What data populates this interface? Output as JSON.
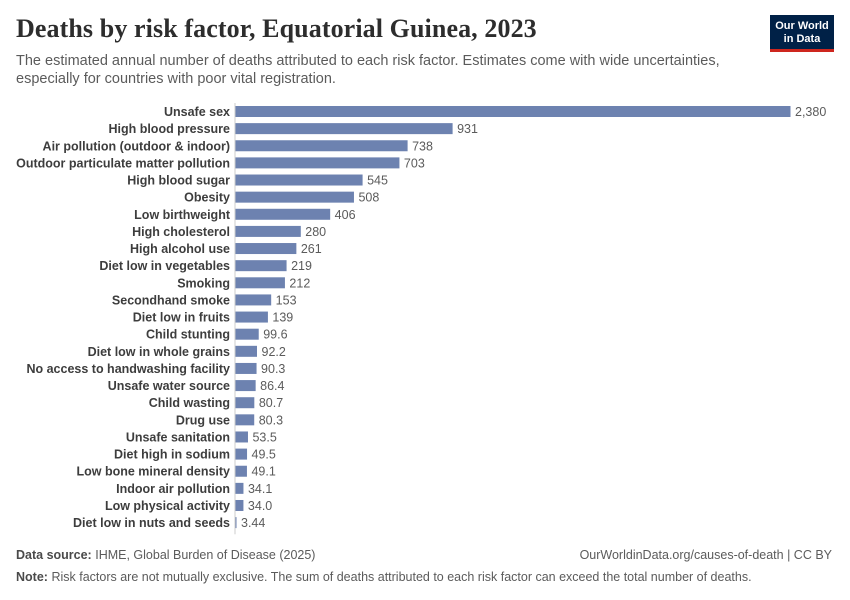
{
  "header": {
    "title": "Deaths by risk factor, Equatorial Guinea, 2023",
    "subtitle": "The estimated annual number of deaths attributed to each risk factor. Estimates come with wide uncertainties, especially for countries with poor vital registration.",
    "logo_line1": "Our World",
    "logo_line2": "in Data"
  },
  "colors": {
    "bar": "#6d82b0",
    "label": "#3d3d3d",
    "value": "#5b5b5b",
    "logo_bg": "#002147",
    "logo_accent": "#ce261e"
  },
  "chart_data": {
    "type": "bar",
    "orientation": "horizontal",
    "title": "Deaths by risk factor, Equatorial Guinea, 2023",
    "categories": [
      "Unsafe sex",
      "High blood pressure",
      "Air pollution (outdoor & indoor)",
      "Outdoor particulate matter pollution",
      "High blood sugar",
      "Obesity",
      "Low birthweight",
      "High cholesterol",
      "High alcohol use",
      "Diet low in vegetables",
      "Smoking",
      "Secondhand smoke",
      "Diet low in fruits",
      "Child stunting",
      "Diet low in whole grains",
      "No access to handwashing facility",
      "Unsafe water source",
      "Child wasting",
      "Drug use",
      "Unsafe sanitation",
      "Diet high in sodium",
      "Low bone mineral density",
      "Indoor air pollution",
      "Low physical activity",
      "Diet low in nuts and seeds"
    ],
    "values": [
      2380,
      931,
      738,
      703,
      545,
      508,
      406,
      280,
      261,
      219,
      212,
      153,
      139,
      99.6,
      92.2,
      90.3,
      86.4,
      80.7,
      80.3,
      53.5,
      49.5,
      49.1,
      34.1,
      34.0,
      3.44
    ],
    "value_labels": [
      "2,380",
      "931",
      "738",
      "703",
      "545",
      "508",
      "406",
      "280",
      "261",
      "219",
      "212",
      "153",
      "139",
      "99.6",
      "92.2",
      "90.3",
      "86.4",
      "80.7",
      "80.3",
      "53.5",
      "49.5",
      "49.1",
      "34.1",
      "34.0",
      "3.44"
    ],
    "xlim": [
      0,
      2380
    ],
    "xlabel": "",
    "ylabel": ""
  },
  "footer": {
    "source_label": "Data source:",
    "source_text": "IHME, Global Burden of Disease (2025)",
    "url_license": "OurWorldinData.org/causes-of-death | CC BY",
    "note_label": "Note:",
    "note_text": "Risk factors are not mutually exclusive. The sum of deaths attributed to each risk factor can exceed the total number of deaths."
  }
}
